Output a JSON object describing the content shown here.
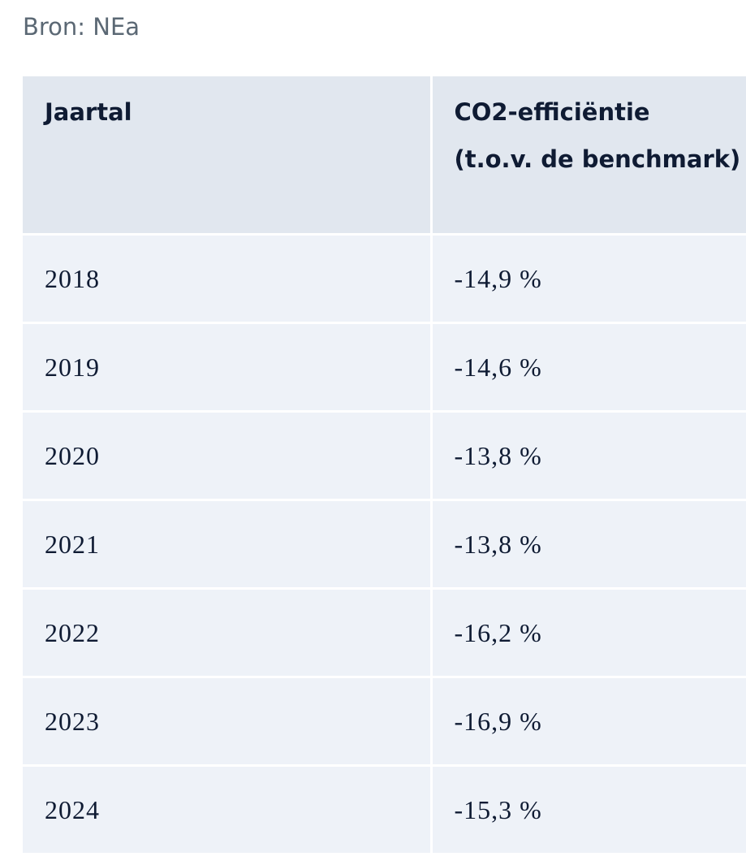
{
  "source": "Bron: NEa",
  "table": {
    "header": [
      "Jaartal",
      [
        "CO2-efficiëntie",
        "(t.o.v. de benchmark)"
      ]
    ],
    "rows": [
      [
        "2018",
        "-14,9 %"
      ],
      [
        "2019",
        "-14,6 %"
      ],
      [
        "2020",
        "-13,8 %"
      ],
      [
        "2021",
        "-13,8 %"
      ],
      [
        "2022",
        "-16,2 %"
      ],
      [
        "2023",
        "-16,9 %"
      ],
      [
        "2024",
        "-15,3 %"
      ]
    ]
  }
}
